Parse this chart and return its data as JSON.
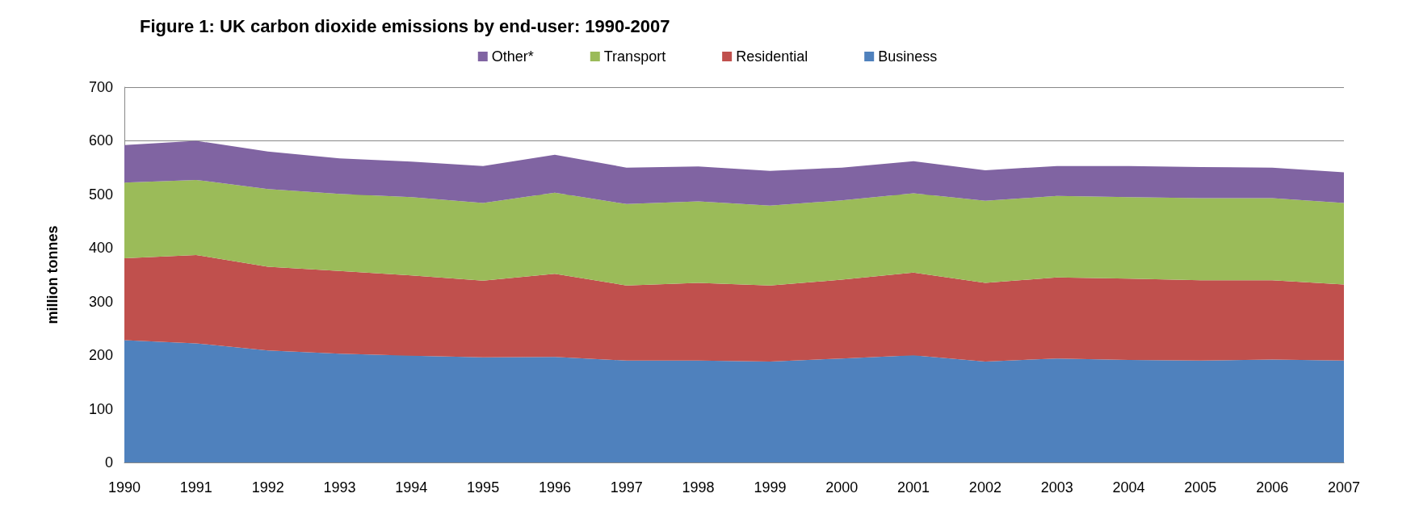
{
  "chart_data": {
    "type": "area",
    "title": "Figure 1: UK carbon dioxide emissions by end-user: 1990-2007",
    "ylabel": "million tonnes",
    "categories": [
      "1990",
      "1991",
      "1992",
      "1993",
      "1994",
      "1995",
      "1996",
      "1997",
      "1998",
      "1999",
      "2000",
      "2001",
      "2002",
      "2003",
      "2004",
      "2005",
      "2006",
      "2007"
    ],
    "stacked": true,
    "series": [
      {
        "name": "Business",
        "color": "#4f81bd",
        "values": [
          228,
          222,
          209,
          203,
          199,
          196,
          197,
          190,
          190,
          188,
          194,
          200,
          188,
          194,
          191,
          190,
          192,
          190
        ]
      },
      {
        "name": "Residential",
        "color": "#c0504d",
        "values": [
          153,
          165,
          156,
          154,
          150,
          143,
          155,
          140,
          145,
          142,
          147,
          154,
          147,
          151,
          152,
          150,
          148,
          142
        ]
      },
      {
        "name": "Transport",
        "color": "#9bbb59",
        "values": [
          141,
          140,
          145,
          144,
          146,
          145,
          151,
          152,
          152,
          149,
          148,
          148,
          153,
          152,
          152,
          153,
          153,
          152
        ]
      },
      {
        "name": "Other*",
        "color": "#8064a2",
        "values": [
          70,
          73,
          70,
          66,
          66,
          69,
          71,
          68,
          65,
          65,
          61,
          60,
          57,
          56,
          58,
          58,
          57,
          57
        ]
      }
    ],
    "ylim": [
      0,
      700
    ],
    "yticks": [
      0,
      100,
      200,
      300,
      400,
      500,
      600,
      700
    ],
    "grid": "y",
    "legend": "top"
  }
}
